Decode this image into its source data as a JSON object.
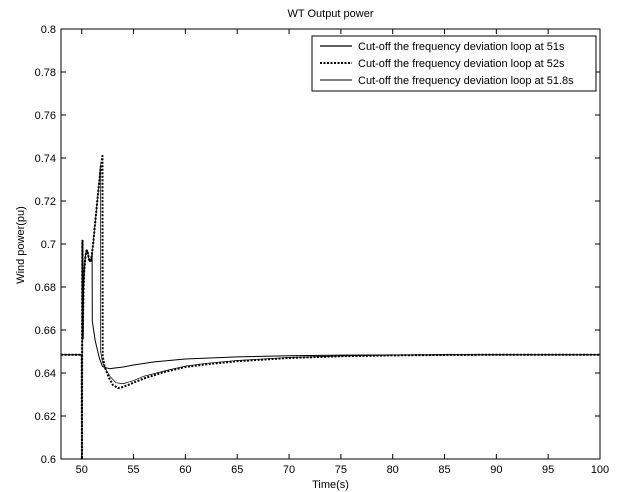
{
  "chart_data": {
    "type": "line",
    "title": "WT Output power",
    "xlabel": "Time(s)",
    "ylabel": "Wind power(pu)",
    "xlim": [
      48,
      100
    ],
    "ylim": [
      0.6,
      0.8
    ],
    "xticks": [
      "50",
      "55",
      "60",
      "65",
      "70",
      "75",
      "80",
      "85",
      "90",
      "95",
      "100"
    ],
    "yticks": [
      "0.6",
      "0.62",
      "0.64",
      "0.66",
      "0.68",
      "0.7",
      "0.72",
      "0.74",
      "0.76",
      "0.78",
      "0.8"
    ],
    "grid": false,
    "legend_position": "top-right",
    "series": [
      {
        "name": "Cut-off the frequency deviation loop at 51s",
        "style": "solid",
        "width": 1.0,
        "color": "#000000",
        "x": [
          48,
          50.0,
          50.02,
          50.06,
          50.08,
          50.1,
          50.14,
          50.18,
          50.25,
          50.35,
          50.45,
          50.55,
          50.65,
          50.75,
          50.85,
          50.95,
          51.0,
          51.02,
          51.15,
          51.3,
          51.5,
          51.7,
          51.85,
          52.0,
          52.3,
          52.7,
          53.0,
          54,
          55,
          57,
          60,
          65,
          70,
          75,
          80,
          85,
          90,
          95,
          100
        ],
        "y": [
          0.6485,
          0.6485,
          0.6,
          0.7015,
          0.7015,
          0.656,
          0.67,
          0.68,
          0.688,
          0.694,
          0.697,
          0.697,
          0.694,
          0.692,
          0.692,
          0.694,
          0.696,
          0.664,
          0.66,
          0.655,
          0.651,
          0.647,
          0.645,
          0.643,
          0.6425,
          0.642,
          0.6422,
          0.6428,
          0.6437,
          0.6452,
          0.6465,
          0.6475,
          0.648,
          0.6483,
          0.6484,
          0.6485,
          0.6485,
          0.6485,
          0.6485
        ]
      },
      {
        "name": "Cut-off the frequency deviation loop at 52s",
        "style": "dotted",
        "width": 2.0,
        "color": "#000000",
        "x": [
          48,
          50.0,
          50.02,
          50.06,
          50.08,
          50.1,
          50.14,
          50.18,
          50.25,
          50.35,
          50.45,
          50.55,
          50.65,
          50.75,
          50.85,
          50.95,
          51.1,
          51.3,
          51.5,
          51.65,
          51.8,
          51.9,
          52.0,
          52.02,
          52.2,
          52.6,
          53.0,
          53.5,
          54,
          55,
          56,
          58,
          60,
          62,
          65,
          70,
          75,
          80,
          85,
          90,
          95,
          100
        ],
        "y": [
          0.6485,
          0.6485,
          0.6,
          0.7015,
          0.7015,
          0.656,
          0.67,
          0.68,
          0.688,
          0.694,
          0.697,
          0.697,
          0.694,
          0.692,
          0.692,
          0.694,
          0.7,
          0.71,
          0.72,
          0.727,
          0.734,
          0.738,
          0.741,
          0.648,
          0.643,
          0.638,
          0.6345,
          0.633,
          0.6335,
          0.6355,
          0.6375,
          0.6405,
          0.6428,
          0.644,
          0.6455,
          0.647,
          0.6478,
          0.6482,
          0.6484,
          0.6485,
          0.6485,
          0.6485
        ]
      },
      {
        "name": "Cut-off the frequency deviation loop at 51.8s",
        "style": "solid",
        "width": 0.7,
        "color": "#000000",
        "x": [
          48,
          50.0,
          50.02,
          50.06,
          50.08,
          50.1,
          50.14,
          50.18,
          50.25,
          50.35,
          50.45,
          50.55,
          50.65,
          50.75,
          50.85,
          50.95,
          51.1,
          51.3,
          51.5,
          51.65,
          51.8,
          51.82,
          52.0,
          52.4,
          52.8,
          53.3,
          54,
          55,
          56,
          58,
          60,
          62,
          65,
          70,
          75,
          80,
          85,
          90,
          95,
          100
        ],
        "y": [
          0.6485,
          0.6485,
          0.6,
          0.7015,
          0.7015,
          0.656,
          0.67,
          0.68,
          0.688,
          0.694,
          0.697,
          0.697,
          0.694,
          0.692,
          0.692,
          0.694,
          0.7,
          0.71,
          0.72,
          0.727,
          0.737,
          0.65,
          0.645,
          0.641,
          0.638,
          0.6355,
          0.635,
          0.6365,
          0.6385,
          0.641,
          0.6432,
          0.6445,
          0.6458,
          0.6472,
          0.6479,
          0.6483,
          0.6485,
          0.6485,
          0.6485,
          0.6485
        ]
      }
    ]
  }
}
